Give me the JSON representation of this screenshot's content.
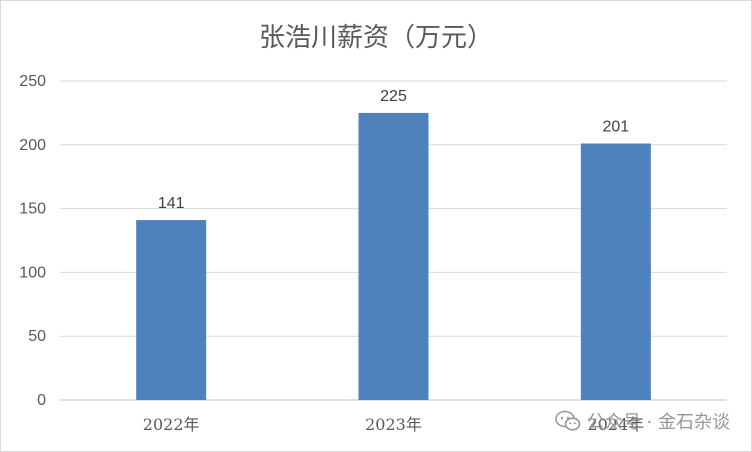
{
  "chart_data": {
    "type": "bar",
    "title": "张浩川薪资（万元）",
    "categories": [
      "2022年",
      "2023年",
      "2024年"
    ],
    "values": [
      141,
      225,
      201
    ],
    "data_labels": [
      "141",
      "225",
      "201"
    ],
    "ylim": [
      0,
      250
    ],
    "yticks": [
      0,
      50,
      100,
      150,
      200,
      250
    ],
    "grid": true,
    "legend": "none",
    "bar_color": "#4f81bd",
    "grid_color": "#d9d9d9",
    "axis_color": "#bfbfbf"
  },
  "watermark": {
    "icon": "wechat-icon",
    "text": "公众号 · 金石杂谈"
  }
}
